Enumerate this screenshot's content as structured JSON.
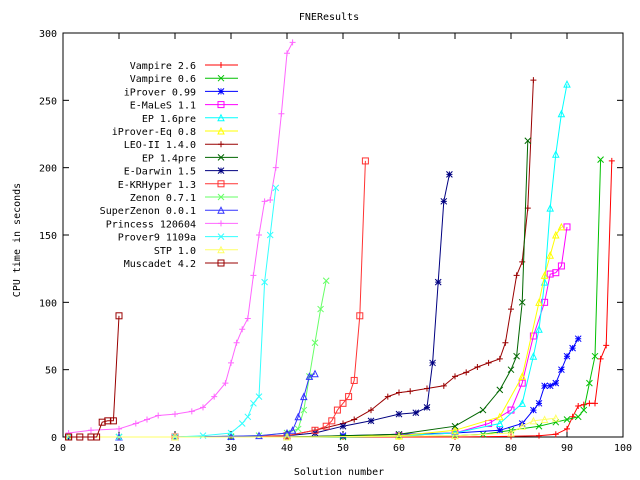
{
  "chart_data": {
    "type": "line",
    "title": "FNEResults",
    "xlabel": "Solution number",
    "ylabel": "CPU time in seconds",
    "xlim": [
      0,
      100
    ],
    "ylim": [
      0,
      300
    ],
    "x_ticks": [
      "0",
      "10",
      "20",
      "30",
      "40",
      "50",
      "60",
      "70",
      "80",
      "90",
      "100"
    ],
    "y_ticks": [
      "0",
      "50",
      "100",
      "150",
      "200",
      "250",
      "300"
    ],
    "grid": false,
    "legend_position": "upper-left",
    "series": [
      {
        "name": "Vampire 2.6",
        "color": "#ff0000",
        "marker": "plus",
        "points": [
          [
            1,
            0
          ],
          [
            10,
            0
          ],
          [
            20,
            0
          ],
          [
            30,
            0
          ],
          [
            40,
            0
          ],
          [
            50,
            0
          ],
          [
            60,
            0
          ],
          [
            70,
            0
          ],
          [
            80,
            0.5
          ],
          [
            85,
            1
          ],
          [
            88,
            2
          ],
          [
            90,
            6
          ],
          [
            91,
            15
          ],
          [
            92,
            23
          ],
          [
            93,
            24
          ],
          [
            94,
            25
          ],
          [
            95,
            25
          ],
          [
            96,
            58
          ],
          [
            97,
            68
          ],
          [
            98,
            205
          ]
        ]
      },
      {
        "name": "Vampire 0.6",
        "color": "#00c000",
        "marker": "x",
        "points": [
          [
            1,
            0
          ],
          [
            10,
            0
          ],
          [
            20,
            0
          ],
          [
            30,
            0
          ],
          [
            40,
            0
          ],
          [
            50,
            0
          ],
          [
            60,
            0.5
          ],
          [
            70,
            1
          ],
          [
            75,
            2
          ],
          [
            80,
            5
          ],
          [
            85,
            8
          ],
          [
            88,
            11
          ],
          [
            90,
            13
          ],
          [
            92,
            15
          ],
          [
            93,
            20
          ],
          [
            94,
            40
          ],
          [
            95,
            60
          ],
          [
            96,
            206
          ]
        ]
      },
      {
        "name": "iProver 0.99",
        "color": "#0000ff",
        "marker": "star",
        "points": [
          [
            1,
            0
          ],
          [
            20,
            0
          ],
          [
            40,
            0
          ],
          [
            50,
            1
          ],
          [
            60,
            2
          ],
          [
            70,
            3
          ],
          [
            78,
            5
          ],
          [
            82,
            10
          ],
          [
            84,
            20
          ],
          [
            85,
            25
          ],
          [
            86,
            38
          ],
          [
            87,
            38
          ],
          [
            88,
            40
          ],
          [
            89,
            50
          ],
          [
            90,
            60
          ],
          [
            91,
            66
          ],
          [
            92,
            73
          ]
        ]
      },
      {
        "name": "E-MaLeS 1.1",
        "color": "#ff00ff",
        "marker": "square",
        "points": [
          [
            1,
            0
          ],
          [
            20,
            0
          ],
          [
            40,
            0
          ],
          [
            60,
            1
          ],
          [
            70,
            3
          ],
          [
            76,
            10
          ],
          [
            80,
            20
          ],
          [
            82,
            40
          ],
          [
            84,
            75
          ],
          [
            86,
            100
          ],
          [
            87,
            121
          ],
          [
            88,
            122
          ],
          [
            89,
            127
          ],
          [
            90,
            156
          ]
        ]
      },
      {
        "name": "EP 1.6pre",
        "color": "#00ffff",
        "marker": "triangle",
        "points": [
          [
            1,
            0
          ],
          [
            20,
            0
          ],
          [
            40,
            0
          ],
          [
            60,
            1
          ],
          [
            70,
            3
          ],
          [
            78,
            10
          ],
          [
            82,
            25
          ],
          [
            84,
            60
          ],
          [
            85,
            80
          ],
          [
            86,
            115
          ],
          [
            87,
            170
          ],
          [
            88,
            210
          ],
          [
            89,
            240
          ],
          [
            90,
            262
          ]
        ]
      },
      {
        "name": "iProver-Eq 0.8",
        "color": "#ffff00",
        "marker": "triangle",
        "points": [
          [
            1,
            0
          ],
          [
            20,
            0
          ],
          [
            40,
            0
          ],
          [
            60,
            1
          ],
          [
            70,
            5
          ],
          [
            78,
            15
          ],
          [
            82,
            45
          ],
          [
            85,
            100
          ],
          [
            86,
            120
          ],
          [
            87,
            135
          ],
          [
            88,
            150
          ],
          [
            89,
            156
          ]
        ]
      },
      {
        "name": "LEO-II 1.4.0",
        "color": "#990000",
        "marker": "plus",
        "points": [
          [
            1,
            0
          ],
          [
            10,
            0
          ],
          [
            20,
            0
          ],
          [
            30,
            0
          ],
          [
            40,
            1
          ],
          [
            45,
            5
          ],
          [
            50,
            10
          ],
          [
            52,
            13
          ],
          [
            55,
            20
          ],
          [
            58,
            30
          ],
          [
            60,
            33
          ],
          [
            62,
            34
          ],
          [
            65,
            36
          ],
          [
            68,
            38
          ],
          [
            70,
            45
          ],
          [
            72,
            48
          ],
          [
            74,
            52
          ],
          [
            76,
            55
          ],
          [
            78,
            58
          ],
          [
            79,
            70
          ],
          [
            80,
            95
          ],
          [
            81,
            120
          ],
          [
            82,
            130
          ],
          [
            83,
            170
          ],
          [
            84,
            265
          ]
        ]
      },
      {
        "name": "EP 1.4pre",
        "color": "#006600",
        "marker": "x",
        "points": [
          [
            1,
            0
          ],
          [
            20,
            0
          ],
          [
            40,
            0
          ],
          [
            60,
            2
          ],
          [
            70,
            8
          ],
          [
            75,
            20
          ],
          [
            78,
            35
          ],
          [
            80,
            50
          ],
          [
            81,
            60
          ],
          [
            82,
            100
          ],
          [
            83,
            220
          ]
        ]
      },
      {
        "name": "E-Darwin 1.5",
        "color": "#000080",
        "marker": "star",
        "points": [
          [
            1,
            0
          ],
          [
            20,
            0
          ],
          [
            40,
            1
          ],
          [
            45,
            3
          ],
          [
            50,
            8
          ],
          [
            55,
            12
          ],
          [
            60,
            17
          ],
          [
            63,
            18
          ],
          [
            65,
            22
          ],
          [
            66,
            55
          ],
          [
            67,
            115
          ],
          [
            68,
            175
          ],
          [
            69,
            195
          ]
        ]
      },
      {
        "name": "E-KRHyper 1.3",
        "color": "#ff3333",
        "marker": "square",
        "points": [
          [
            1,
            0
          ],
          [
            20,
            0
          ],
          [
            40,
            1
          ],
          [
            45,
            5
          ],
          [
            47,
            8
          ],
          [
            48,
            12
          ],
          [
            49,
            20
          ],
          [
            50,
            25
          ],
          [
            51,
            30
          ],
          [
            52,
            42
          ],
          [
            53,
            90
          ],
          [
            54,
            205
          ]
        ]
      },
      {
        "name": "Zenon 0.7.1",
        "color": "#66ff66",
        "marker": "x",
        "points": [
          [
            1,
            0
          ],
          [
            10,
            0
          ],
          [
            20,
            0
          ],
          [
            30,
            0.5
          ],
          [
            35,
            1
          ],
          [
            40,
            3
          ],
          [
            42,
            6
          ],
          [
            43,
            20
          ],
          [
            44,
            45
          ],
          [
            45,
            70
          ],
          [
            46,
            95
          ],
          [
            47,
            116
          ]
        ]
      },
      {
        "name": "SuperZenon 0.0.1",
        "color": "#3333ff",
        "marker": "triangle",
        "points": [
          [
            1,
            0
          ],
          [
            10,
            0
          ],
          [
            20,
            0
          ],
          [
            30,
            0.5
          ],
          [
            35,
            1
          ],
          [
            40,
            3
          ],
          [
            41,
            5
          ],
          [
            42,
            15
          ],
          [
            43,
            30
          ],
          [
            44,
            45
          ],
          [
            45,
            47
          ]
        ]
      },
      {
        "name": "Princess 120604",
        "color": "#ff66ff",
        "marker": "plus",
        "points": [
          [
            1,
            3
          ],
          [
            5,
            5
          ],
          [
            10,
            6
          ],
          [
            13,
            10
          ],
          [
            15,
            13
          ],
          [
            17,
            16
          ],
          [
            20,
            17
          ],
          [
            23,
            19
          ],
          [
            25,
            22
          ],
          [
            27,
            30
          ],
          [
            29,
            40
          ],
          [
            30,
            55
          ],
          [
            31,
            70
          ],
          [
            32,
            80
          ],
          [
            33,
            88
          ],
          [
            34,
            120
          ],
          [
            35,
            150
          ],
          [
            36,
            175
          ],
          [
            37,
            176
          ],
          [
            38,
            200
          ],
          [
            39,
            240
          ],
          [
            40,
            285
          ],
          [
            41,
            293
          ]
        ]
      },
      {
        "name": "Prover9 1109a",
        "color": "#33ffff",
        "marker": "x",
        "points": [
          [
            1,
            0
          ],
          [
            10,
            0
          ],
          [
            20,
            0
          ],
          [
            25,
            1
          ],
          [
            30,
            3
          ],
          [
            32,
            10
          ],
          [
            33,
            15
          ],
          [
            34,
            25
          ],
          [
            35,
            30
          ],
          [
            36,
            115
          ],
          [
            37,
            150
          ],
          [
            38,
            185
          ]
        ]
      },
      {
        "name": "STP 1.0",
        "color": "#ffff66",
        "marker": "triangle",
        "points": [
          [
            1,
            0
          ],
          [
            20,
            0
          ],
          [
            40,
            0
          ],
          [
            60,
            0.5
          ],
          [
            70,
            1
          ],
          [
            80,
            3
          ],
          [
            82,
            8
          ],
          [
            84,
            12
          ],
          [
            86,
            13
          ],
          [
            88,
            14
          ]
        ]
      },
      {
        "name": "Muscadet 4.2",
        "color": "#990000",
        "marker": "square",
        "points": [
          [
            1,
            0
          ],
          [
            3,
            0
          ],
          [
            5,
            0
          ],
          [
            6,
            0
          ],
          [
            7,
            11
          ],
          [
            8,
            12
          ],
          [
            9,
            12
          ],
          [
            10,
            90
          ]
        ]
      }
    ]
  }
}
